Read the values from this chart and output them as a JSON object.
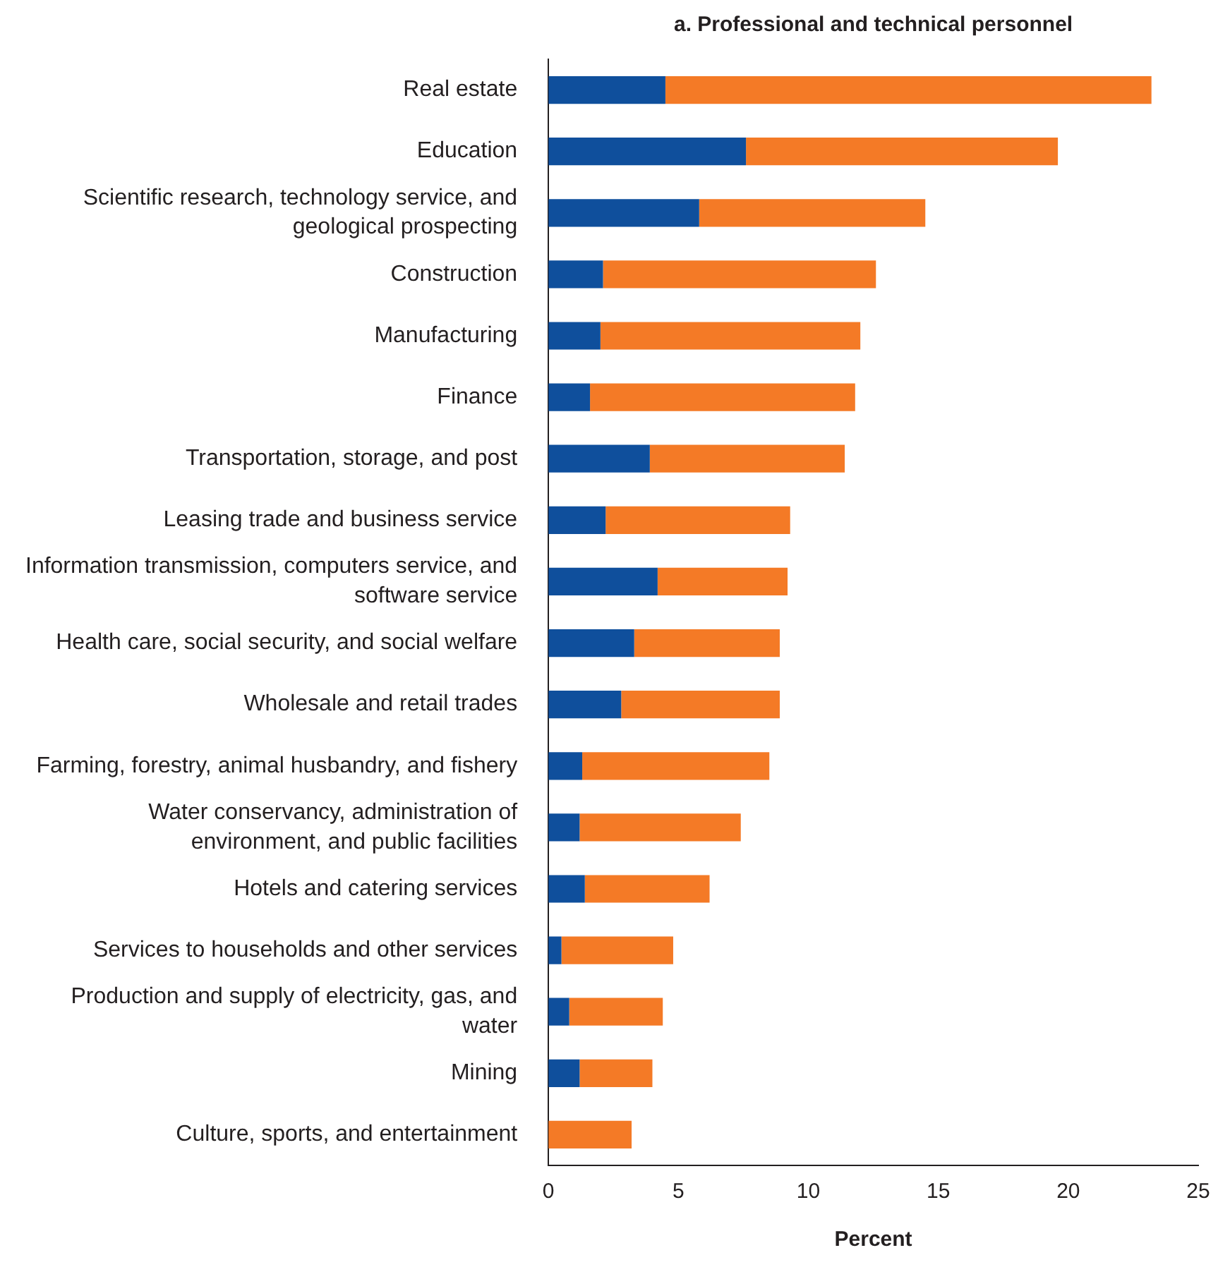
{
  "chart_data": {
    "type": "bar",
    "orientation": "horizontal",
    "stacked": true,
    "title": "a. Professional and technical personnel",
    "xlabel": "Percent",
    "categories": [
      "Real estate",
      "Education",
      "Scientific research, technology service, and geological prospecting",
      "Construction",
      "Manufacturing",
      "Finance",
      "Transportation, storage, and post",
      "Leasing trade and business service",
      "Information transmission, computers service, and software service",
      "Health care, social security, and social welfare",
      "Wholesale and retail trades",
      "Farming, forestry, animal husbandry, and fishery",
      "Water conservancy, administration of environment, and public facilities",
      "Hotels and catering services",
      "Services to households and other services",
      "Production and supply of electricity, gas, and water",
      "Mining",
      "Culture, sports, and entertainment"
    ],
    "series": [
      {
        "color": "#0f4f9c",
        "values": [
          4.5,
          7.6,
          5.8,
          2.1,
          2.0,
          1.6,
          3.9,
          2.2,
          4.2,
          3.3,
          2.8,
          1.3,
          1.2,
          1.4,
          0.5,
          0.8,
          1.2,
          0
        ]
      },
      {
        "color": "#f47a26",
        "values": [
          18.7,
          12.0,
          8.7,
          10.5,
          10.0,
          10.2,
          7.5,
          7.1,
          5.0,
          5.6,
          6.1,
          7.2,
          6.2,
          4.8,
          4.3,
          3.6,
          2.8,
          3.2
        ]
      }
    ],
    "xlim": [
      0,
      25
    ],
    "xticks": [
      0,
      5,
      10,
      15,
      20,
      25
    ],
    "grid": false,
    "legend": false
  }
}
